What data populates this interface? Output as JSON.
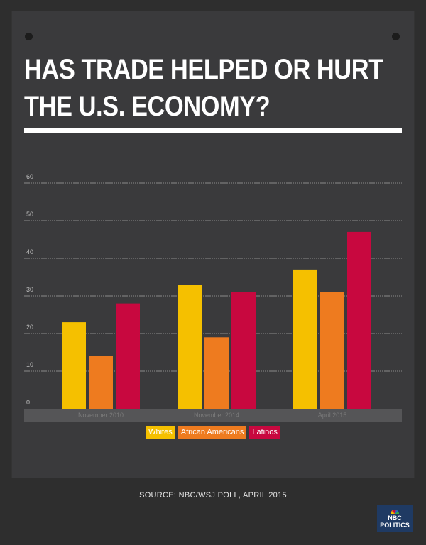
{
  "title_line1": "HAS TRADE HELPED OR HURT",
  "title_line2": "THE U.S. ECONOMY?",
  "source": "SOURCE: NBC/WSJ POLL, APRIL 2015",
  "logo": {
    "line1": "NBC",
    "line2": "POLITICS"
  },
  "colors": {
    "Whites": "#f5c000",
    "African Americans": "#ee7b1f",
    "Latinos": "#c8083f"
  },
  "chart_data": {
    "type": "bar",
    "categories": [
      "November 2010",
      "November 2014",
      "April 2015"
    ],
    "series": [
      {
        "name": "Whites",
        "values": [
          23,
          33,
          37
        ]
      },
      {
        "name": "African Americans",
        "values": [
          14,
          19,
          31
        ]
      },
      {
        "name": "Latinos",
        "values": [
          28,
          31,
          47
        ]
      }
    ],
    "yticks": [
      0,
      10,
      20,
      30,
      40,
      50,
      60
    ],
    "ylim": [
      0,
      60
    ],
    "grid": true,
    "legend_position": "bottom-center"
  }
}
